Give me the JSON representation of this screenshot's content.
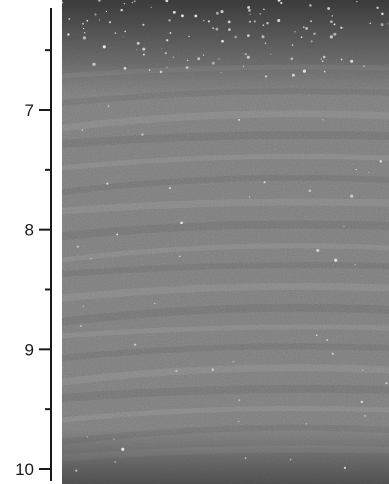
{
  "scale": {
    "min": 6.25,
    "max": 10,
    "major_ticks": [
      {
        "value": 7,
        "label": "7"
      },
      {
        "value": 8,
        "label": "8"
      },
      {
        "value": 9,
        "label": "9"
      },
      {
        "value": 10,
        "label": "10"
      }
    ],
    "minor_ticks": [
      6.5,
      7.5,
      8.5,
      9.5
    ]
  },
  "colors": {
    "axis": "#1a1a1a",
    "background": "#ffffff",
    "core_base": "#7b7b7b"
  }
}
